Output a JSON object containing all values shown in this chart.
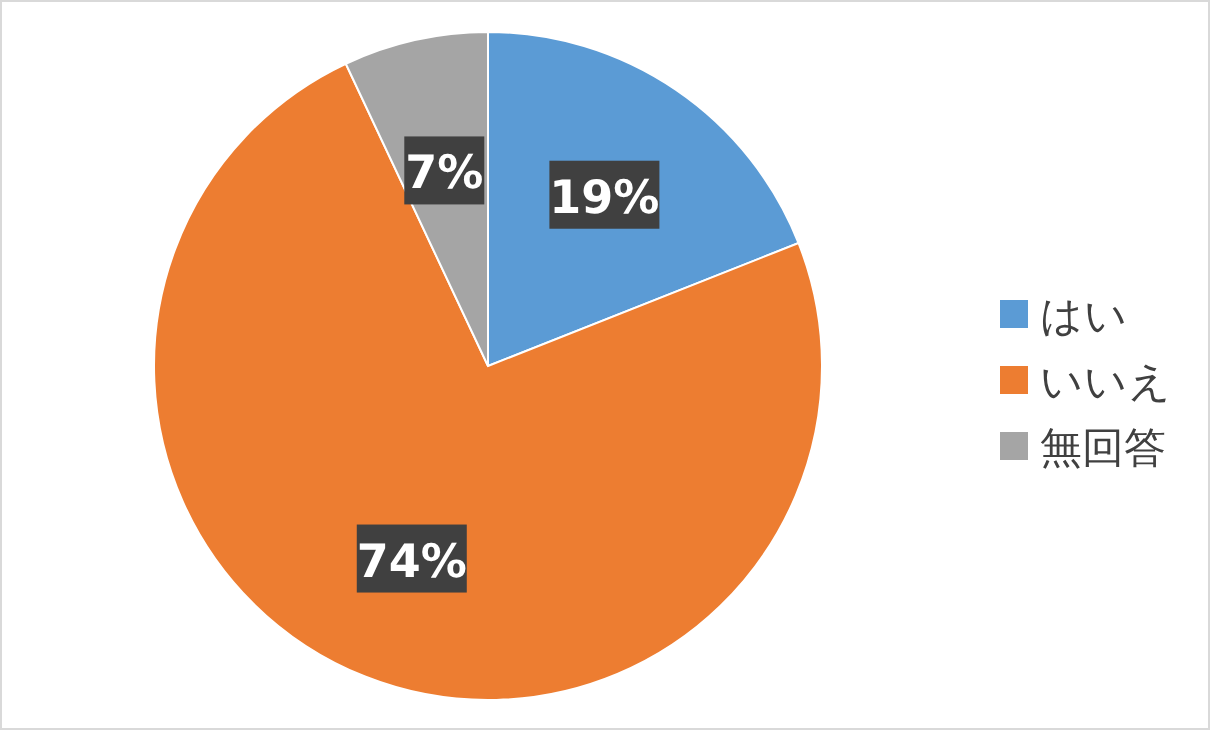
{
  "chart_data": {
    "type": "pie",
    "categories": [
      "はい",
      "いいえ",
      "無回答"
    ],
    "values": [
      19,
      74,
      7
    ],
    "colors": [
      "#5b9bd5",
      "#ed7d31",
      "#a5a5a5"
    ],
    "value_labels": [
      "19%",
      "74%",
      "7%"
    ],
    "legend": "right"
  }
}
